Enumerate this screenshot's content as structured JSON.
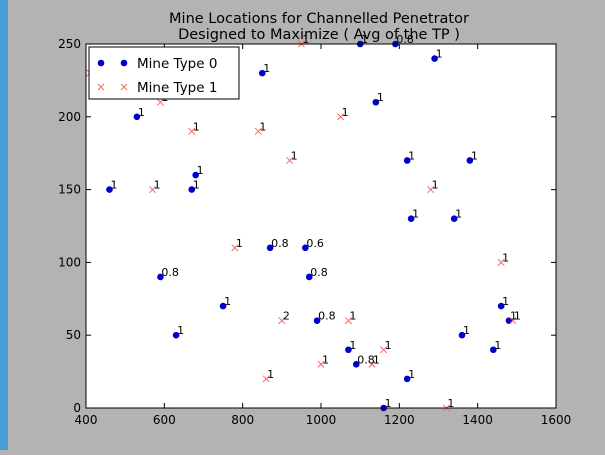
{
  "chart_data": {
    "type": "scatter",
    "title_line1": "Mine Locations for Channelled Penetrator",
    "title_line2": "Designed to Maximize ( Avg of the TP )",
    "xlabel": "",
    "ylabel": "",
    "xlim": [
      400,
      1600
    ],
    "ylim": [
      0,
      250
    ],
    "xticks": [
      "400",
      "600",
      "800",
      "1000",
      "1200",
      "1400",
      "1600"
    ],
    "yticks": [
      "0",
      "50",
      "100",
      "150",
      "200",
      "250"
    ],
    "xtick_values": [
      400,
      600,
      800,
      1000,
      1200,
      1400,
      1600
    ],
    "ytick_values": [
      0,
      50,
      100,
      150,
      200,
      250
    ],
    "grid": false,
    "legend_position": "upper-left",
    "series": [
      {
        "name": "Mine Type 0",
        "marker": "circle",
        "color": "#0000cc",
        "points": [
          {
            "x": 460,
            "y": 150,
            "label": "1"
          },
          {
            "x": 530,
            "y": 200,
            "label": "1"
          },
          {
            "x": 590,
            "y": 90,
            "label": "0.8"
          },
          {
            "x": 630,
            "y": 50,
            "label": "1"
          },
          {
            "x": 670,
            "y": 150,
            "label": "1"
          },
          {
            "x": 680,
            "y": 160,
            "label": "1"
          },
          {
            "x": 750,
            "y": 70,
            "label": "1"
          },
          {
            "x": 850,
            "y": 230,
            "label": "1"
          },
          {
            "x": 870,
            "y": 110,
            "label": "0.8"
          },
          {
            "x": 960,
            "y": 110,
            "label": "0.6"
          },
          {
            "x": 970,
            "y": 90,
            "label": "0.8"
          },
          {
            "x": 990,
            "y": 60,
            "label": "0.8"
          },
          {
            "x": 1070,
            "y": 40,
            "label": "1"
          },
          {
            "x": 1090,
            "y": 30,
            "label": "0.8"
          },
          {
            "x": 1100,
            "y": 250,
            "label": "1"
          },
          {
            "x": 1140,
            "y": 210,
            "label": "1"
          },
          {
            "x": 1160,
            "y": 0,
            "label": "1"
          },
          {
            "x": 1190,
            "y": 250,
            "label": "0.8"
          },
          {
            "x": 1220,
            "y": 170,
            "label": "1"
          },
          {
            "x": 1220,
            "y": 20,
            "label": "1"
          },
          {
            "x": 1230,
            "y": 130,
            "label": "1"
          },
          {
            "x": 1290,
            "y": 240,
            "label": "1"
          },
          {
            "x": 1340,
            "y": 130,
            "label": "1"
          },
          {
            "x": 1360,
            "y": 50,
            "label": "1"
          },
          {
            "x": 1380,
            "y": 170,
            "label": "1"
          },
          {
            "x": 1440,
            "y": 40,
            "label": "1"
          },
          {
            "x": 1460,
            "y": 70,
            "label": "1"
          },
          {
            "x": 1480,
            "y": 60,
            "label": "1"
          }
        ]
      },
      {
        "name": "Mine Type 1",
        "marker": "x",
        "color": "#ff6666",
        "points": [
          {
            "x": 410,
            "y": 230,
            "label": "1"
          },
          {
            "x": 570,
            "y": 150,
            "label": "1"
          },
          {
            "x": 590,
            "y": 210,
            "label": "1"
          },
          {
            "x": 670,
            "y": 190,
            "label": "1"
          },
          {
            "x": 780,
            "y": 110,
            "label": "1"
          },
          {
            "x": 840,
            "y": 190,
            "label": "1"
          },
          {
            "x": 860,
            "y": 20,
            "label": "1"
          },
          {
            "x": 900,
            "y": 60,
            "label": "2"
          },
          {
            "x": 920,
            "y": 170,
            "label": "1"
          },
          {
            "x": 950,
            "y": 250,
            "label": "1"
          },
          {
            "x": 1000,
            "y": 30,
            "label": "1"
          },
          {
            "x": 1050,
            "y": 200,
            "label": "1"
          },
          {
            "x": 1070,
            "y": 60,
            "label": "1"
          },
          {
            "x": 1130,
            "y": 30,
            "label": "1"
          },
          {
            "x": 1160,
            "y": 40,
            "label": "1"
          },
          {
            "x": 1280,
            "y": 150,
            "label": "1"
          },
          {
            "x": 1320,
            "y": 0,
            "label": "1"
          },
          {
            "x": 1460,
            "y": 100,
            "label": "1"
          },
          {
            "x": 1490,
            "y": 60,
            "label": "1"
          }
        ]
      }
    ]
  }
}
